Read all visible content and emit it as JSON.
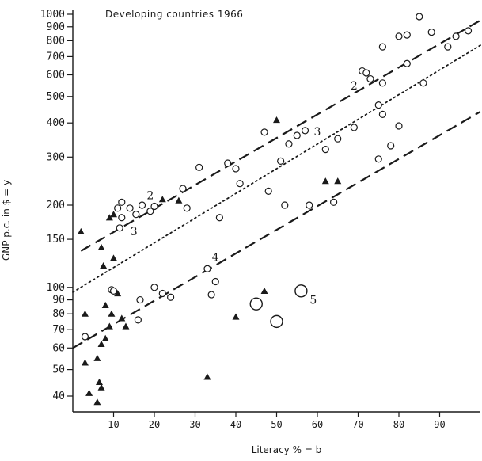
{
  "chart_data": {
    "type": "scatter",
    "title": "Developing countries 1966",
    "xlabel": "Literacy % = b",
    "ylabel": "GNP p.c. in $ = y",
    "y_scale": "log",
    "xlim": [
      0,
      100
    ],
    "ylim": [
      35,
      1000
    ],
    "x_ticks": [
      10,
      20,
      30,
      40,
      50,
      60,
      70,
      80,
      90
    ],
    "x_tick_labels": [
      "10",
      "20",
      "30",
      "40",
      "50",
      "60",
      "70",
      "80",
      "90"
    ],
    "y_ticks": [
      40,
      50,
      60,
      70,
      80,
      90,
      100,
      150,
      200,
      300,
      400,
      500,
      600,
      700,
      800,
      900,
      1000
    ],
    "y_tick_labels": [
      "40",
      "50",
      "60",
      "70",
      "80",
      "90",
      "100",
      "150",
      "200",
      "300",
      "400",
      "500",
      "600",
      "700",
      "800",
      "900",
      "1000"
    ],
    "grid": false,
    "colors": {
      "ink": "#1a1a1a",
      "background": "#ffffff"
    },
    "markers": {
      "circles": "open-circle",
      "triangles": "filled-triangle",
      "large_circles": "large-open-circle"
    },
    "circles": [
      [
        3,
        66
      ],
      [
        9.5,
        98
      ],
      [
        10,
        97
      ],
      [
        12,
        205
      ],
      [
        11,
        195
      ],
      [
        11.5,
        165
      ],
      [
        14,
        195
      ],
      [
        12,
        180
      ],
      [
        15.5,
        185
      ],
      [
        17,
        200
      ],
      [
        19,
        190
      ],
      [
        20,
        198
      ],
      [
        16,
        76
      ],
      [
        16.5,
        90
      ],
      [
        20,
        100
      ],
      [
        22,
        95
      ],
      [
        24,
        92
      ],
      [
        27,
        230
      ],
      [
        28,
        195
      ],
      [
        31,
        275
      ],
      [
        33,
        117
      ],
      [
        34,
        94
      ],
      [
        35,
        105
      ],
      [
        36,
        180
      ],
      [
        38,
        285
      ],
      [
        40,
        272
      ],
      [
        41,
        240
      ],
      [
        47,
        370
      ],
      [
        48,
        225
      ],
      [
        51,
        290
      ],
      [
        52,
        200
      ],
      [
        53,
        335
      ],
      [
        55,
        360
      ],
      [
        57,
        375
      ],
      [
        58,
        200
      ],
      [
        62,
        320
      ],
      [
        64,
        205
      ],
      [
        65,
        350
      ],
      [
        71,
        620
      ],
      [
        72,
        610
      ],
      [
        73,
        580
      ],
      [
        75,
        465
      ],
      [
        76,
        430
      ],
      [
        76,
        560
      ],
      [
        78,
        330
      ],
      [
        80,
        390
      ],
      [
        82,
        660
      ],
      [
        75,
        295
      ],
      [
        69,
        385
      ],
      [
        76,
        760
      ],
      [
        80,
        830
      ],
      [
        82,
        840
      ],
      [
        86,
        560
      ],
      [
        88,
        860
      ],
      [
        92,
        760
      ],
      [
        94,
        830
      ],
      [
        97,
        870
      ],
      [
        85,
        980
      ]
    ],
    "triangles": [
      [
        2,
        160
      ],
      [
        3,
        53
      ],
      [
        3,
        80
      ],
      [
        4,
        41
      ],
      [
        6,
        38
      ],
      [
        6,
        55
      ],
      [
        6.5,
        45
      ],
      [
        7,
        43
      ],
      [
        7,
        62
      ],
      [
        7,
        140
      ],
      [
        7.5,
        120
      ],
      [
        8,
        86
      ],
      [
        8,
        65
      ],
      [
        9,
        72
      ],
      [
        9,
        180
      ],
      [
        9.5,
        80
      ],
      [
        10,
        128
      ],
      [
        10,
        185
      ],
      [
        11,
        95
      ],
      [
        12,
        77
      ],
      [
        13,
        72
      ],
      [
        22,
        210
      ],
      [
        26,
        208
      ],
      [
        33,
        47
      ],
      [
        40,
        78
      ],
      [
        47,
        97
      ],
      [
        50,
        410
      ],
      [
        62,
        245
      ],
      [
        65,
        245
      ]
    ],
    "large_circles": [
      [
        45,
        87
      ],
      [
        50,
        75
      ],
      [
        56,
        97
      ]
    ],
    "regression_lines": [
      {
        "label": "2",
        "style": "dashed",
        "points": [
          [
            2,
            136
          ],
          [
            100,
            950
          ]
        ]
      },
      {
        "label": "3",
        "style": "dotted",
        "points": [
          [
            0,
            96
          ],
          [
            100,
            770
          ]
        ]
      },
      {
        "label": "4",
        "style": "dashed",
        "points": [
          [
            0,
            60
          ],
          [
            100,
            440
          ]
        ]
      }
    ],
    "line_labels": [
      {
        "text": "2",
        "at": [
          69,
          530
        ]
      },
      {
        "text": "2",
        "at": [
          19,
          210
        ]
      },
      {
        "text": "3",
        "at": [
          60,
          360
        ]
      },
      {
        "text": "3",
        "at": [
          15,
          155
        ]
      },
      {
        "text": "4",
        "at": [
          35,
          125
        ]
      },
      {
        "text": "5",
        "at": [
          59,
          87
        ]
      }
    ]
  }
}
